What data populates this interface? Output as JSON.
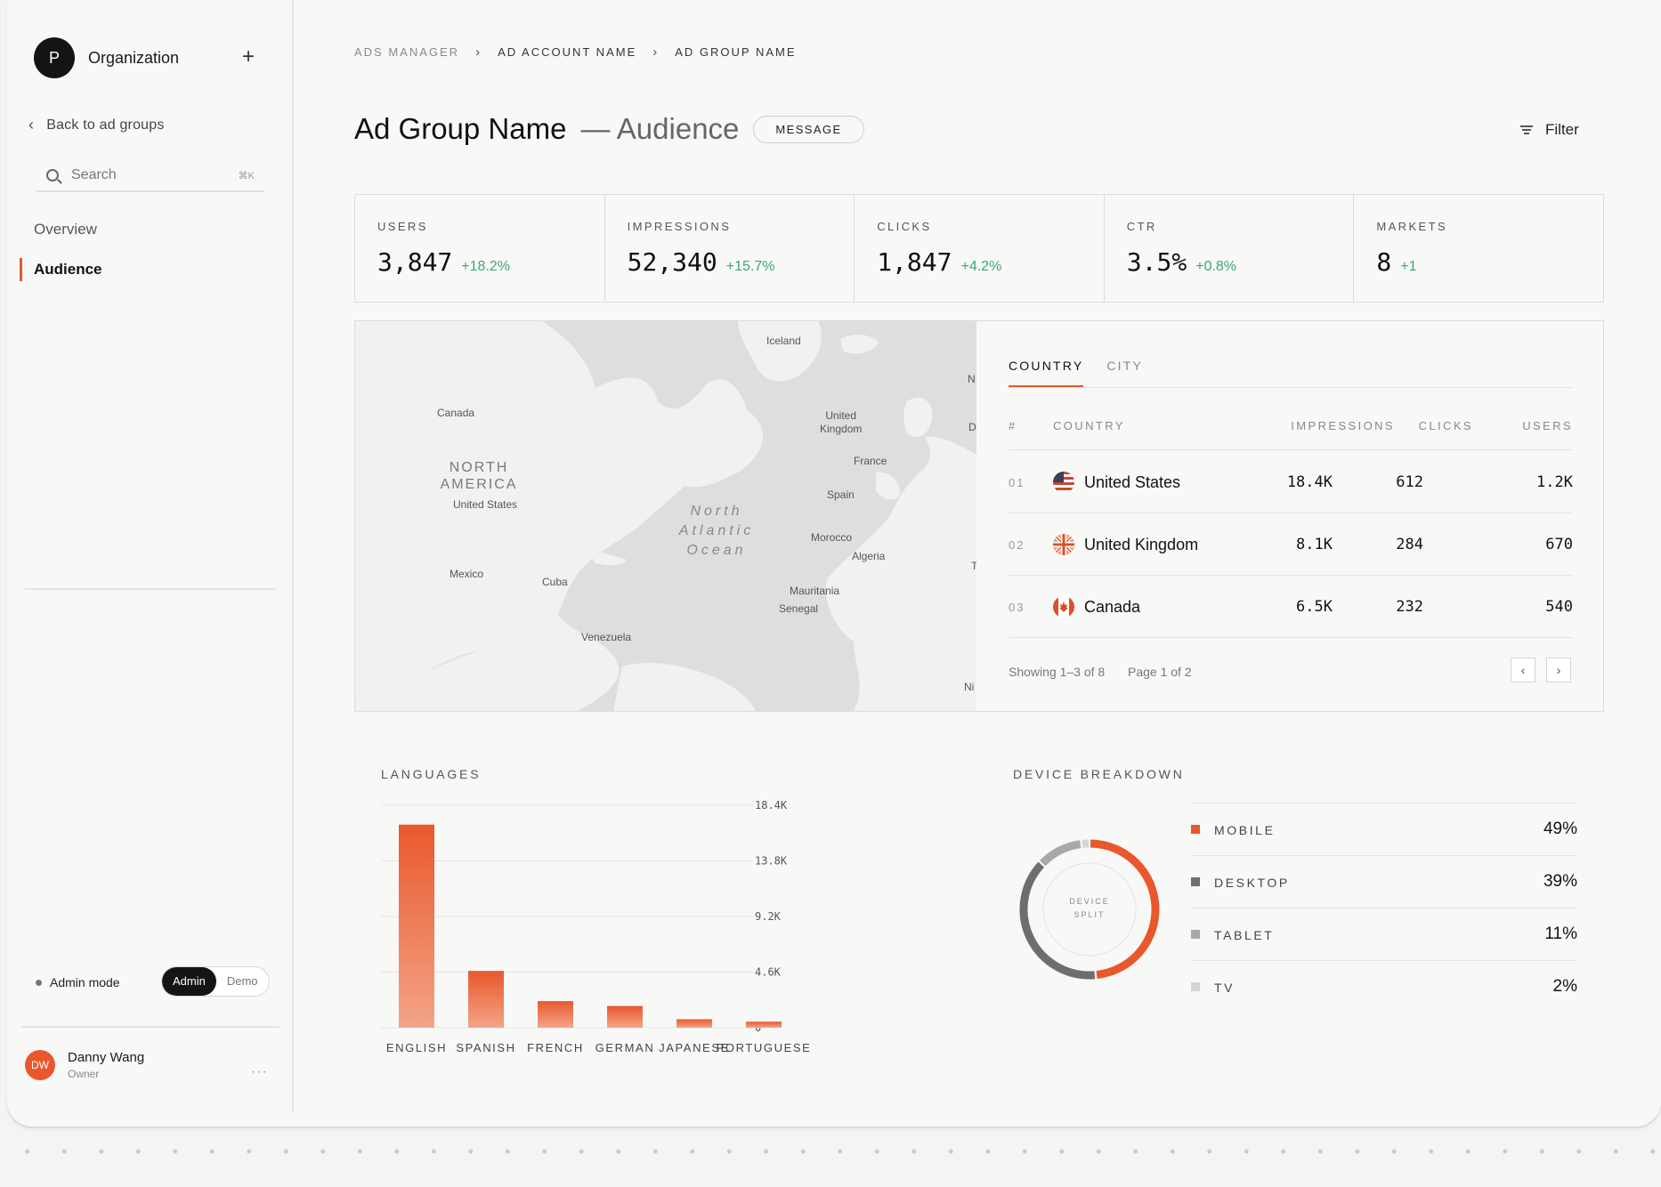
{
  "sidebar": {
    "org_initial": "P",
    "org_name": "Organization",
    "add_glyph": "+",
    "back_label": "Back to ad groups",
    "search_placeholder": "Search",
    "search_shortcut": "⌘K",
    "nav": [
      "Overview",
      "Audience"
    ],
    "active_nav": "Audience",
    "admin_mode_label": "Admin mode",
    "toggle": {
      "on": "Admin",
      "off": "Demo"
    },
    "user": {
      "initials": "DW",
      "name": "Danny Wang",
      "role": "Owner"
    },
    "more_glyph": "···"
  },
  "breadcrumb": [
    "ADS MANAGER",
    "AD ACCOUNT NAME",
    "AD GROUP NAME"
  ],
  "header": {
    "title": "Ad Group Name",
    "subtitle": "— Audience",
    "pill": "MESSAGE",
    "filter_label": "Filter"
  },
  "stats": [
    {
      "label": "USERS",
      "value": "3,847",
      "delta": "+18.2%"
    },
    {
      "label": "IMPRESSIONS",
      "value": "52,340",
      "delta": "+15.7%"
    },
    {
      "label": "CLICKS",
      "value": "1,847",
      "delta": "+4.2%"
    },
    {
      "label": "CTR",
      "value": "3.5%",
      "delta": "+0.8%"
    },
    {
      "label": "MARKETS",
      "value": "8",
      "delta": "+1"
    }
  ],
  "map": {
    "labels": {
      "canada": "Canada",
      "north_america": "NORTH\nAMERICA",
      "united_states": "United States",
      "mexico": "Mexico",
      "cuba": "Cuba",
      "venezuela": "Venezuela",
      "iceland": "Iceland",
      "united_kingdom": "United\nKingdom",
      "france": "France",
      "spain": "Spain",
      "morocco": "Morocco",
      "algeria": "Algeria",
      "mauritania": "Mauritania",
      "senegal": "Senegal",
      "ocean": "North\nAtlantic\nOcean",
      "edge_n": "N",
      "edge_d": "D",
      "edge_t": "T",
      "edge_ni": "Ni"
    }
  },
  "geo_table": {
    "tabs": [
      "COUNTRY",
      "CITY"
    ],
    "active_tab": "COUNTRY",
    "columns": [
      "#",
      "COUNTRY",
      "IMPRESSIONS",
      "CLICKS",
      "USERS"
    ],
    "rows": [
      {
        "idx": "01",
        "country": "United States",
        "flag": "us-flag-icon",
        "impressions": "18.4K",
        "clicks": "612",
        "users": "1.2K"
      },
      {
        "idx": "02",
        "country": "United Kingdom",
        "flag": "uk-flag-icon",
        "impressions": "8.1K",
        "clicks": "284",
        "users": "670"
      },
      {
        "idx": "03",
        "country": "Canada",
        "flag": "canada-flag-icon",
        "impressions": "6.5K",
        "clicks": "232",
        "users": "540"
      }
    ],
    "showing": "Showing 1–3 of 8",
    "page": "Page 1 of 2",
    "prev_glyph": "‹",
    "next_glyph": "›"
  },
  "languages": {
    "title": "LANGUAGES"
  },
  "devices": {
    "title": "DEVICE BREAKDOWN",
    "center_label": "DEVICE\nSPLIT"
  },
  "chart_data": [
    {
      "type": "bar",
      "title": "LANGUAGES",
      "categories": [
        "ENGLISH",
        "SPANISH",
        "FRENCH",
        "GERMAN",
        "JAPANESE",
        "PORTUGUESE"
      ],
      "values": [
        16800,
        4700,
        2200,
        1800,
        700,
        500
      ],
      "yticks": [
        "18.4K",
        "13.8K",
        "9.2K",
        "4.6K",
        "0"
      ],
      "ytick_values": [
        18400,
        13800,
        9200,
        4600,
        0
      ],
      "ylim": [
        0,
        18400
      ],
      "grid": true,
      "colors": {
        "top": "#e8582c",
        "bottom": "#f3a488"
      }
    },
    {
      "type": "pie",
      "title": "DEVICE BREAKDOWN",
      "categories": [
        "MOBILE",
        "DESKTOP",
        "TABLET",
        "TV"
      ],
      "values": [
        49,
        39,
        11,
        2
      ],
      "labels": [
        "49%",
        "39%",
        "11%",
        "2%"
      ],
      "colors": [
        "#e8582c",
        "#6e6e6e",
        "#a8a8a8",
        "#d4d4d4"
      ]
    }
  ],
  "colors": {
    "accent": "#e8582c",
    "positive": "#3aa874"
  }
}
